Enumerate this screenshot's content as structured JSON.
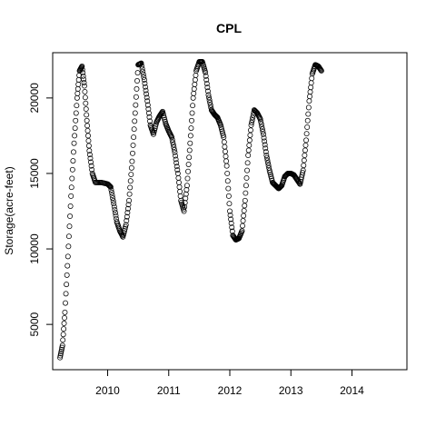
{
  "chart_data": {
    "type": "scatter",
    "title": "CPL",
    "xlabel": "",
    "ylabel": "Storage(acre-feet)",
    "xlim": [
      2009.1,
      2014.9
    ],
    "ylim": [
      2000,
      23000
    ],
    "xticks": [
      2010,
      2011,
      2012,
      2013,
      2014
    ],
    "yticks": [
      5000,
      10000,
      15000,
      20000
    ],
    "grid": false,
    "marker": "open-circle",
    "series": [
      {
        "x": [
          2009.22,
          2009.26,
          2009.3,
          2009.35,
          2009.4,
          2009.45,
          2009.5,
          2009.54,
          2009.58,
          2009.62,
          2009.66,
          2009.7,
          2009.75,
          2009.8,
          2009.9,
          2010.0,
          2010.05,
          2010.1,
          2010.15,
          2010.2,
          2010.25,
          2010.3,
          2010.35,
          2010.4,
          2010.45,
          2010.5,
          2010.55,
          2010.6,
          2010.65,
          2010.7,
          2010.75,
          2010.8,
          2010.85,
          2010.9,
          2010.95,
          2011.0,
          2011.05,
          2011.1,
          2011.15,
          2011.2,
          2011.25,
          2011.3,
          2011.35,
          2011.4,
          2011.45,
          2011.5,
          2011.55,
          2011.6,
          2011.65,
          2011.7,
          2011.75,
          2011.8,
          2011.85,
          2011.9,
          2011.95,
          2012.0,
          2012.05,
          2012.1,
          2012.15,
          2012.2,
          2012.25,
          2012.3,
          2012.35,
          2012.4,
          2012.45,
          2012.5,
          2012.55,
          2012.6,
          2012.65,
          2012.7,
          2012.75,
          2012.8,
          2012.85,
          2012.9,
          2012.95,
          2013.0,
          2013.05,
          2013.1,
          2013.15,
          2013.2,
          2013.25,
          2013.3,
          2013.35,
          2013.4,
          2013.45,
          2013.5
        ],
        "y": [
          2800,
          3600,
          5800,
          9500,
          13500,
          17000,
          20000,
          21800,
          22100,
          20800,
          18500,
          16500,
          15000,
          14400,
          14400,
          14300,
          14100,
          13000,
          11800,
          11200,
          10800,
          11600,
          13200,
          15800,
          19000,
          22200,
          22300,
          21200,
          19800,
          18200,
          17600,
          18400,
          18800,
          19100,
          18300,
          17800,
          17400,
          16400,
          15000,
          13200,
          12500,
          14200,
          17000,
          20000,
          21800,
          22400,
          22400,
          21700,
          20200,
          19200,
          18900,
          18700,
          18200,
          17400,
          15500,
          12500,
          10900,
          10600,
          10700,
          11200,
          13200,
          16200,
          18200,
          19200,
          19000,
          18600,
          17600,
          16200,
          15200,
          14400,
          14200,
          14000,
          14200,
          14800,
          15000,
          15000,
          14900,
          14600,
          14300,
          15200,
          17200,
          19800,
          21600,
          22200,
          22100,
          21800
        ]
      }
    ]
  }
}
